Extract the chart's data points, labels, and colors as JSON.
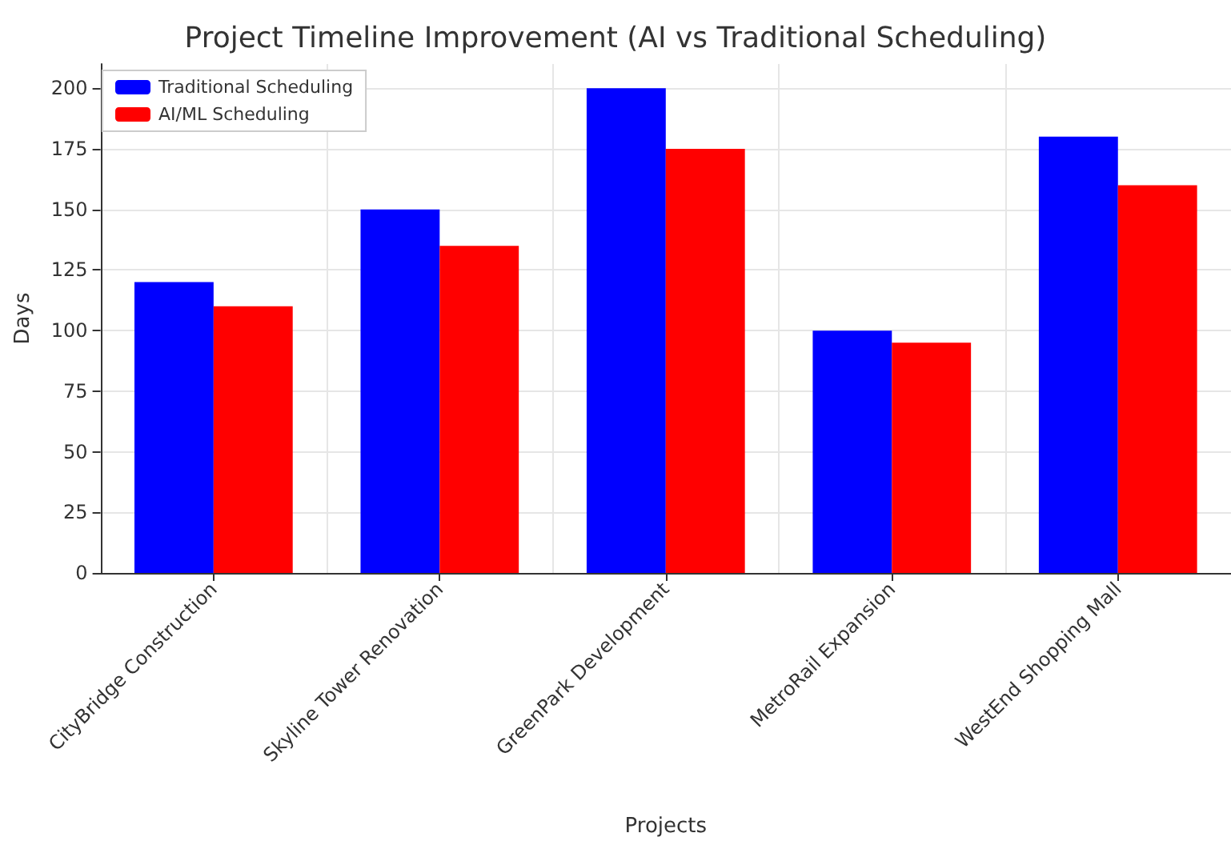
{
  "chart_data": {
    "type": "bar",
    "title": "Project Timeline Improvement (AI vs Traditional Scheduling)",
    "xlabel": "Projects",
    "ylabel": "Days",
    "categories": [
      "CityBridge Construction",
      "Skyline Tower Renovation",
      "GreenPark Development",
      "MetroRail Expansion",
      "WestEnd Shopping Mall"
    ],
    "series": [
      {
        "name": "Traditional Scheduling",
        "color": "#0000ff",
        "values": [
          120,
          150,
          200,
          100,
          180
        ]
      },
      {
        "name": "AI/ML Scheduling",
        "color": "#ff0000",
        "values": [
          110,
          135,
          175,
          95,
          160
        ]
      }
    ],
    "ylim": [
      0,
      210
    ],
    "yticks": [
      0,
      25,
      50,
      75,
      100,
      125,
      150,
      175,
      200
    ],
    "grid": true,
    "legend": "top left"
  }
}
